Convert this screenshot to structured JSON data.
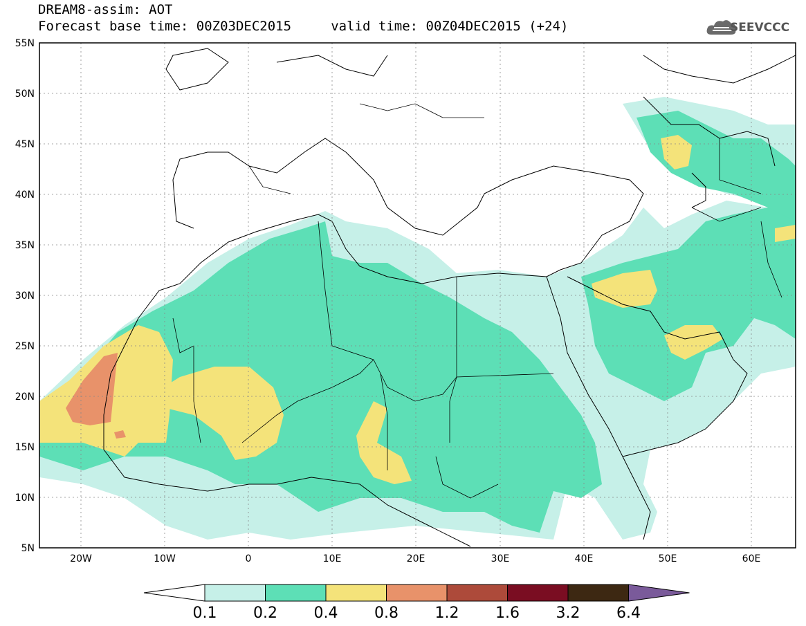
{
  "header": {
    "title_line1": "DREAM8-assim: AOT",
    "title_line2": "Forecast base time: 00Z03DEC2015     valid time: 00Z04DEC2015 (+24)",
    "logo_text": "SEEVCCC"
  },
  "map": {
    "lat_labels": [
      "55N",
      "50N",
      "45N",
      "40N",
      "35N",
      "30N",
      "25N",
      "20N",
      "15N",
      "10N",
      "5N"
    ],
    "lon_labels": [
      "20W",
      "10W",
      "0",
      "10E",
      "20E",
      "30E",
      "40E",
      "50E",
      "60E"
    ],
    "lon_range": [
      -25,
      65
    ],
    "lat_range": [
      5,
      55
    ]
  },
  "colorbar": {
    "levels": [
      "0.1",
      "0.2",
      "0.4",
      "0.8",
      "1.2",
      "1.6",
      "3.2",
      "6.4"
    ],
    "colors": [
      "#ffffff",
      "#c6f0e8",
      "#5ddfb6",
      "#f4e37a",
      "#e8926a",
      "#ad4a3a",
      "#7a0d22",
      "#3d2812",
      "#7a5a9a"
    ]
  }
}
